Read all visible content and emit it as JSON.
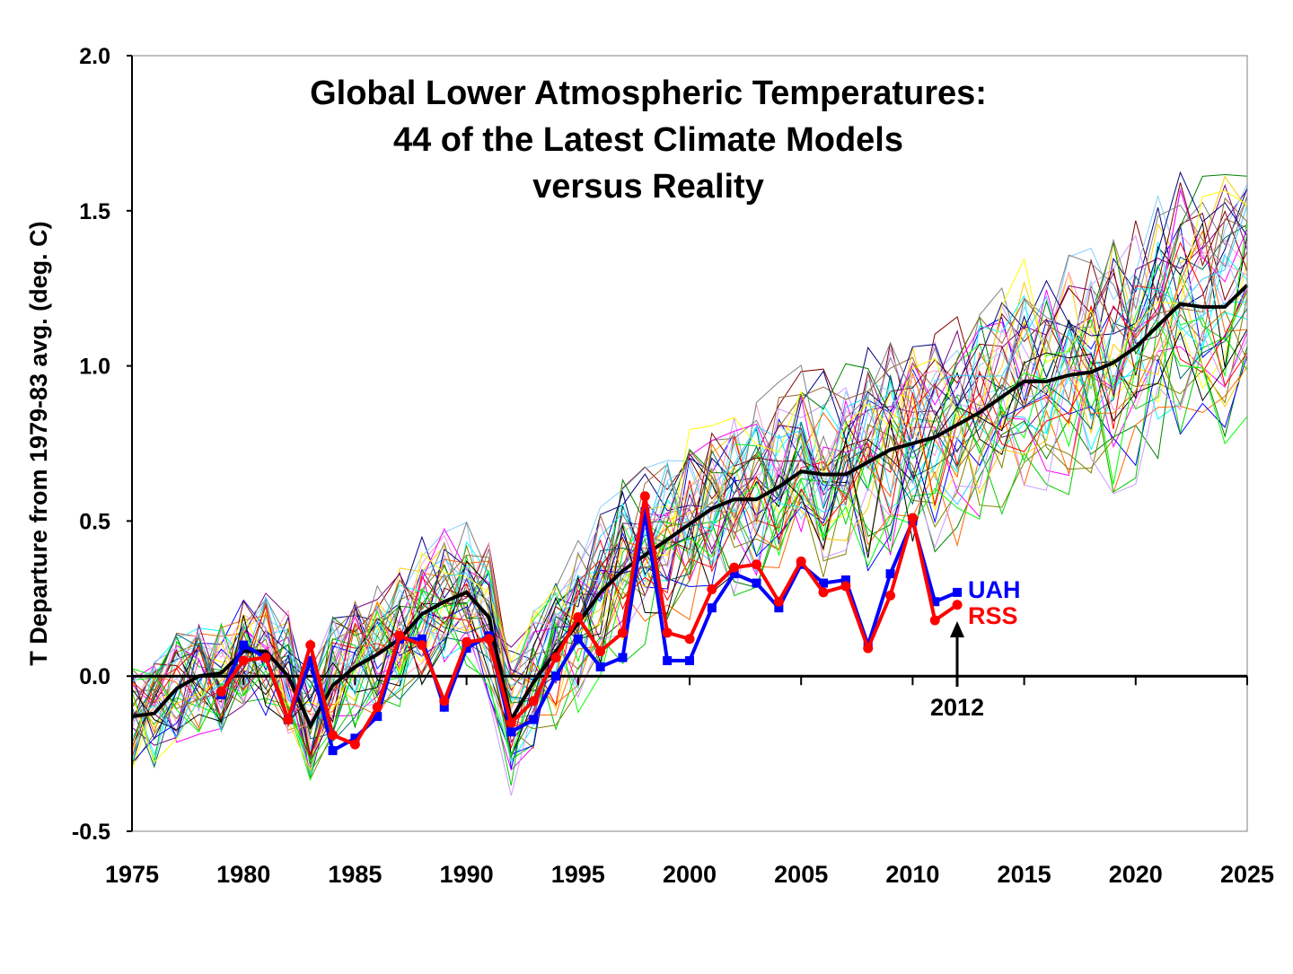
{
  "chart_data": {
    "type": "line",
    "title_lines": [
      "Global Lower Atmospheric Temperatures:",
      "44 of the Latest Climate Models",
      "versus Reality"
    ],
    "xlabel": "",
    "ylabel": "T Departure from 1979-83 avg. (deg. C)",
    "xlim": [
      1975,
      2025
    ],
    "ylim": [
      -0.5,
      2.0
    ],
    "x_ticks": [
      "1975",
      "1980",
      "1985",
      "1990",
      "1995",
      "2000",
      "2005",
      "2010",
      "2015",
      "2020",
      "2025"
    ],
    "y_ticks": [
      "-0.5",
      "0.0",
      "0.5",
      "1.0",
      "1.5",
      "2.0"
    ],
    "grid": false,
    "annotation": "2012",
    "model_count": 44,
    "model_mean": {
      "color": "#000000",
      "x": [
        1975,
        1976,
        1977,
        1978,
        1979,
        1980,
        1981,
        1982,
        1983,
        1984,
        1985,
        1986,
        1987,
        1988,
        1989,
        1990,
        1991,
        1992,
        1993,
        1994,
        1995,
        1996,
        1997,
        1998,
        1999,
        2000,
        2001,
        2002,
        2003,
        2004,
        2005,
        2006,
        2007,
        2008,
        2009,
        2010,
        2011,
        2012,
        2013,
        2014,
        2015,
        2016,
        2017,
        2018,
        2019,
        2020,
        2021,
        2022,
        2023,
        2024,
        2025
      ],
      "values": [
        -0.13,
        -0.12,
        -0.04,
        0.0,
        0.01,
        0.08,
        0.08,
        0.0,
        -0.16,
        -0.03,
        0.03,
        0.07,
        0.12,
        0.2,
        0.24,
        0.27,
        0.19,
        -0.14,
        -0.02,
        0.08,
        0.17,
        0.27,
        0.34,
        0.39,
        0.44,
        0.49,
        0.54,
        0.57,
        0.57,
        0.61,
        0.66,
        0.65,
        0.65,
        0.69,
        0.73,
        0.75,
        0.77,
        0.81,
        0.85,
        0.9,
        0.95,
        0.95,
        0.97,
        0.98,
        1.01,
        1.06,
        1.13,
        1.2,
        1.19,
        1.19,
        1.26
      ]
    },
    "series": [
      {
        "name": "UAH",
        "color": "#0000FF",
        "marker": "square",
        "x": [
          1979,
          1980,
          1981,
          1982,
          1983,
          1984,
          1985,
          1986,
          1987,
          1988,
          1989,
          1990,
          1991,
          1992,
          1993,
          1994,
          1995,
          1996,
          1997,
          1998,
          1999,
          2000,
          2001,
          2002,
          2003,
          2004,
          2005,
          2006,
          2007,
          2008,
          2009,
          2010,
          2011,
          2012
        ],
        "values": [
          -0.06,
          0.1,
          0.06,
          -0.14,
          0.05,
          -0.24,
          -0.2,
          -0.13,
          0.12,
          0.12,
          -0.1,
          0.09,
          0.13,
          -0.18,
          -0.14,
          0.0,
          0.12,
          0.03,
          0.06,
          0.53,
          0.05,
          0.05,
          0.22,
          0.33,
          0.3,
          0.22,
          0.36,
          0.3,
          0.31,
          0.1,
          0.33,
          0.5,
          0.24,
          0.27
        ]
      },
      {
        "name": "RSS",
        "color": "#FF0000",
        "marker": "circle",
        "x": [
          1979,
          1980,
          1981,
          1982,
          1983,
          1984,
          1985,
          1986,
          1987,
          1988,
          1989,
          1990,
          1991,
          1992,
          1993,
          1994,
          1995,
          1996,
          1997,
          1998,
          1999,
          2000,
          2001,
          2002,
          2003,
          2004,
          2005,
          2006,
          2007,
          2008,
          2009,
          2010,
          2011,
          2012
        ],
        "values": [
          -0.05,
          0.05,
          0.06,
          -0.14,
          0.1,
          -0.19,
          -0.22,
          -0.1,
          0.13,
          0.1,
          -0.08,
          0.11,
          0.12,
          -0.15,
          -0.08,
          0.06,
          0.19,
          0.08,
          0.14,
          0.58,
          0.14,
          0.12,
          0.28,
          0.35,
          0.36,
          0.24,
          0.37,
          0.27,
          0.29,
          0.09,
          0.26,
          0.51,
          0.18,
          0.23
        ]
      }
    ]
  }
}
